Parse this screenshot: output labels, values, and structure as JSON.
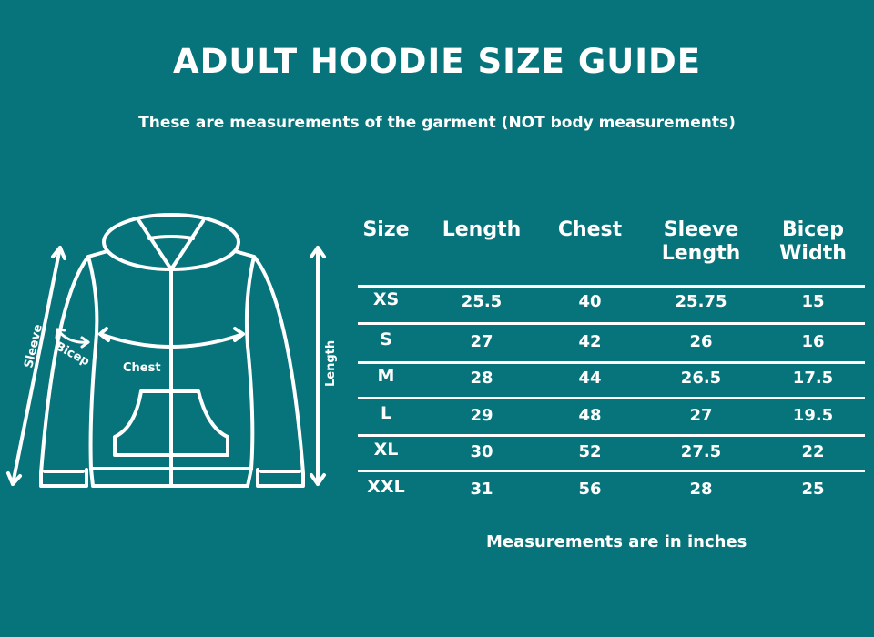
{
  "title": "ADULT HOODIE SIZE GUIDE",
  "subtitle": "These are measurements of the garment (NOT body measurements)",
  "diagram_labels": {
    "sleeve": "Sleeve",
    "bicep": "Bicep",
    "chest": "Chest",
    "length": "Length"
  },
  "table": {
    "headers": [
      "Size",
      "Length",
      "Chest",
      "Sleeve\nLength",
      "Bicep\nWidth"
    ],
    "rows": [
      [
        "XS",
        "25.5",
        "40",
        "25.75",
        "15"
      ],
      [
        "S",
        "27",
        "42",
        "26",
        "16"
      ],
      [
        "M",
        "28",
        "44",
        "26.5",
        "17.5"
      ],
      [
        "L",
        "29",
        "48",
        "27",
        "19.5"
      ],
      [
        "XL",
        "30",
        "52",
        "27.5",
        "22"
      ],
      [
        "XXL",
        "31",
        "56",
        "28",
        "25"
      ]
    ]
  },
  "footer": "Measurements are in inches",
  "colors": {
    "background": "#07747b",
    "foreground": "#ffffff"
  }
}
